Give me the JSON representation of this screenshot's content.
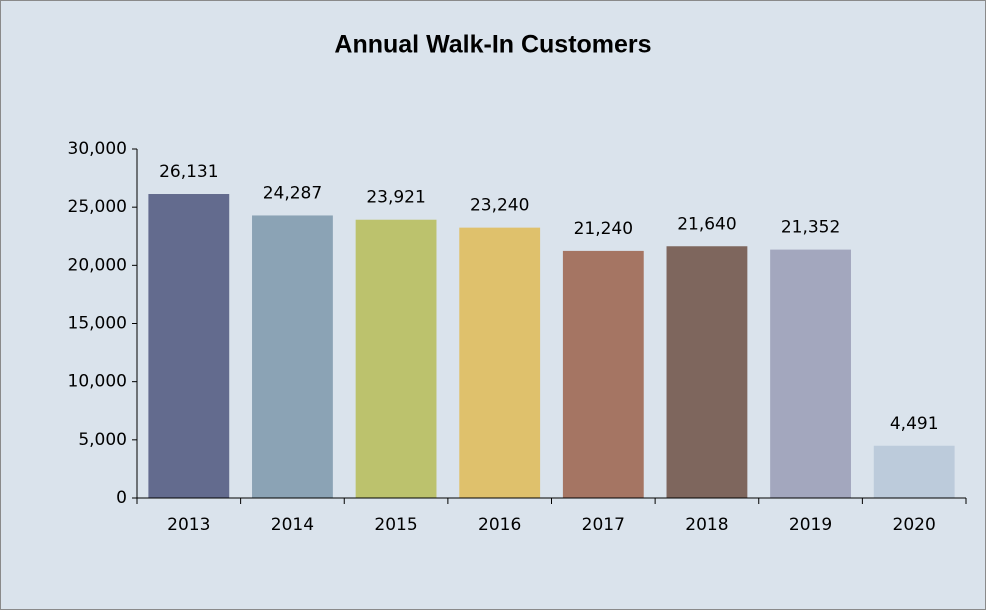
{
  "chart_data": {
    "type": "bar",
    "title": "Annual Walk-In Customers",
    "categories": [
      "2013",
      "2014",
      "2015",
      "2016",
      "2017",
      "2018",
      "2019",
      "2020"
    ],
    "values": [
      26131,
      24287,
      23921,
      23240,
      21240,
      21640,
      21352,
      4491
    ],
    "value_labels": [
      "26,131",
      "24,287",
      "23,921",
      "23,240",
      "21,240",
      "21,640",
      "21,352",
      "4,491"
    ],
    "colors": [
      "#636b8e",
      "#8ba3b5",
      "#bcc26d",
      "#dfc16c",
      "#a57563",
      "#7e665d",
      "#a3a7be",
      "#bccbdb"
    ],
    "ylim": [
      0,
      30000
    ],
    "yticks": [
      0,
      {
        "value": 5000,
        "label": "5,000"
      },
      {
        "value": 10000,
        "label": "10,000"
      },
      {
        "value": 15000,
        "label": "15,000"
      },
      {
        "value": 20000,
        "label": "20,000"
      },
      {
        "value": 25000,
        "label": "25,000"
      },
      {
        "value": 30000,
        "label": "30,000"
      }
    ],
    "grid": false
  }
}
